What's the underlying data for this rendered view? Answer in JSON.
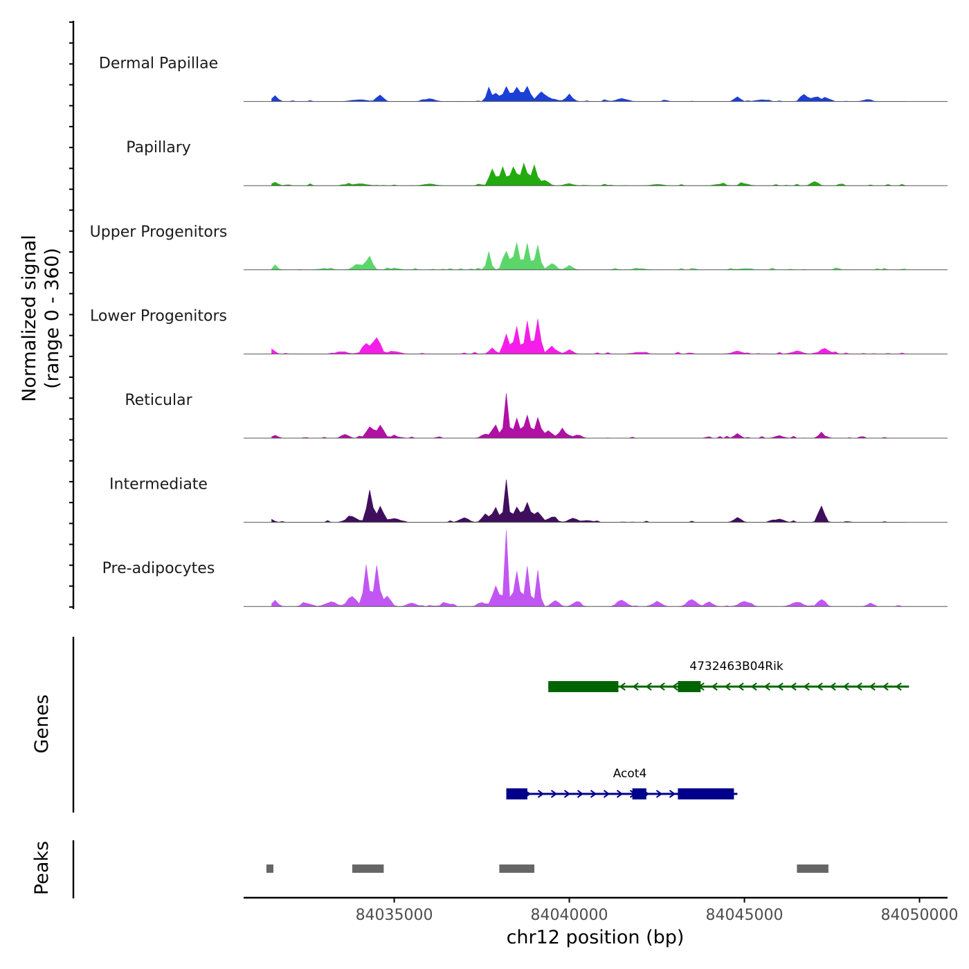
{
  "chart_data": {
    "type": "area",
    "chromosome": "chr12",
    "xlabel": "chr12 position (bp)",
    "xlim": [
      84030700,
      84050800
    ],
    "x_ticks": [
      84035000,
      84040000,
      84045000,
      84050000
    ],
    "x_tick_labels": [
      "84035000",
      "84040000",
      "84045000",
      "84050000"
    ],
    "ylabel_line1": "Normalized signal",
    "ylabel_line2": "(range 0 - 360)",
    "ylim": [
      0,
      360
    ],
    "bin_size": 100,
    "tracks": [
      {
        "name": "Dermal Papillae",
        "color": "#1c3fd6",
        "peaks": [
          [
            84031600,
            12,
            80
          ],
          [
            84034000,
            4,
            200
          ],
          [
            84034600,
            14,
            90
          ],
          [
            84036000,
            6,
            150
          ],
          [
            84037700,
            35,
            60
          ],
          [
            84037900,
            18,
            70
          ],
          [
            84038200,
            30,
            90
          ],
          [
            84038500,
            35,
            90
          ],
          [
            84038800,
            32,
            80
          ],
          [
            84039200,
            18,
            120
          ],
          [
            84039500,
            5,
            150
          ],
          [
            84040000,
            12,
            100
          ],
          [
            84041500,
            6,
            150
          ],
          [
            84044800,
            10,
            80
          ],
          [
            84045500,
            4,
            150
          ],
          [
            84046700,
            15,
            90
          ],
          [
            84047000,
            10,
            80
          ],
          [
            84047300,
            8,
            90
          ],
          [
            84048500,
            4,
            120
          ]
        ]
      },
      {
        "name": "Papillary",
        "color": "#22aa0f",
        "peaks": [
          [
            84031600,
            8,
            80
          ],
          [
            84034000,
            4,
            200
          ],
          [
            84036000,
            4,
            150
          ],
          [
            84037800,
            40,
            80
          ],
          [
            84038100,
            42,
            80
          ],
          [
            84038400,
            46,
            80
          ],
          [
            84038700,
            46,
            80
          ],
          [
            84039000,
            42,
            80
          ],
          [
            84039300,
            12,
            100
          ],
          [
            84040000,
            4,
            120
          ],
          [
            84042500,
            3,
            150
          ],
          [
            84044300,
            3,
            150
          ],
          [
            84045000,
            4,
            120
          ],
          [
            84047000,
            10,
            90
          ]
        ]
      },
      {
        "name": "Upper Progenitors",
        "color": "#5cd66b",
        "peaks": [
          [
            84031600,
            6,
            80
          ],
          [
            84033000,
            3,
            150
          ],
          [
            84034000,
            12,
            150
          ],
          [
            84034300,
            25,
            80
          ],
          [
            84035000,
            3,
            150
          ],
          [
            84037700,
            35,
            60
          ],
          [
            84038200,
            35,
            90
          ],
          [
            84038500,
            60,
            70
          ],
          [
            84038800,
            58,
            70
          ],
          [
            84039100,
            50,
            70
          ],
          [
            84039500,
            14,
            100
          ],
          [
            84040000,
            8,
            100
          ],
          [
            84042000,
            3,
            150
          ],
          [
            84045000,
            3,
            150
          ]
        ]
      },
      {
        "name": "Lower Progenitors",
        "color": "#f51ee9",
        "peaks": [
          [
            84031500,
            10,
            80
          ],
          [
            84033500,
            5,
            150
          ],
          [
            84034200,
            25,
            100
          ],
          [
            84034500,
            32,
            100
          ],
          [
            84035000,
            6,
            150
          ],
          [
            84037800,
            12,
            80
          ],
          [
            84038200,
            40,
            80
          ],
          [
            84038500,
            60,
            70
          ],
          [
            84038800,
            70,
            70
          ],
          [
            84039100,
            75,
            70
          ],
          [
            84039500,
            18,
            100
          ],
          [
            84040000,
            8,
            100
          ],
          [
            84042000,
            4,
            150
          ],
          [
            84044800,
            5,
            150
          ],
          [
            84046500,
            6,
            150
          ],
          [
            84047300,
            8,
            150
          ]
        ]
      },
      {
        "name": "Reticular",
        "color": "#b010a4",
        "peaks": [
          [
            84031600,
            6,
            80
          ],
          [
            84033600,
            8,
            100
          ],
          [
            84034300,
            25,
            100
          ],
          [
            84034600,
            28,
            90
          ],
          [
            84035000,
            4,
            150
          ],
          [
            84037600,
            10,
            100
          ],
          [
            84037900,
            25,
            80
          ],
          [
            84038200,
            95,
            60
          ],
          [
            84038500,
            45,
            80
          ],
          [
            84038800,
            48,
            80
          ],
          [
            84039100,
            40,
            80
          ],
          [
            84039400,
            15,
            100
          ],
          [
            84039800,
            20,
            100
          ],
          [
            84040200,
            6,
            100
          ],
          [
            84044800,
            10,
            80
          ],
          [
            84046000,
            5,
            120
          ],
          [
            84047200,
            12,
            80
          ]
        ]
      },
      {
        "name": "Intermediate",
        "color": "#3f0f5c",
        "peaks": [
          [
            84031500,
            6,
            80
          ],
          [
            84033800,
            12,
            150
          ],
          [
            84034300,
            62,
            80
          ],
          [
            84034600,
            30,
            90
          ],
          [
            84035000,
            8,
            150
          ],
          [
            84037000,
            10,
            120
          ],
          [
            84037600,
            18,
            80
          ],
          [
            84037900,
            30,
            80
          ],
          [
            84038200,
            88,
            60
          ],
          [
            84038500,
            35,
            90
          ],
          [
            84038800,
            38,
            90
          ],
          [
            84039100,
            20,
            100
          ],
          [
            84039500,
            10,
            120
          ],
          [
            84040100,
            8,
            120
          ],
          [
            84040500,
            4,
            150
          ],
          [
            84044800,
            10,
            100
          ],
          [
            84046000,
            8,
            120
          ],
          [
            84047200,
            38,
            80
          ]
        ]
      },
      {
        "name": "Pre-adipocytes",
        "color": "#c256f2",
        "peaks": [
          [
            84031600,
            12,
            80
          ],
          [
            84032500,
            8,
            120
          ],
          [
            84033200,
            10,
            150
          ],
          [
            84033800,
            22,
            120
          ],
          [
            84034200,
            80,
            70
          ],
          [
            84034500,
            85,
            70
          ],
          [
            84034800,
            20,
            100
          ],
          [
            84035500,
            8,
            120
          ],
          [
            84036500,
            8,
            120
          ],
          [
            84037500,
            10,
            100
          ],
          [
            84037900,
            40,
            100
          ],
          [
            84038200,
            150,
            50
          ],
          [
            84038500,
            75,
            70
          ],
          [
            84038800,
            90,
            60
          ],
          [
            84039100,
            70,
            60
          ],
          [
            84039600,
            12,
            100
          ],
          [
            84040200,
            10,
            100
          ],
          [
            84041500,
            15,
            120
          ],
          [
            84042500,
            10,
            120
          ],
          [
            84043500,
            15,
            120
          ],
          [
            84044000,
            10,
            100
          ],
          [
            84045000,
            10,
            150
          ],
          [
            84046500,
            10,
            150
          ],
          [
            84047200,
            15,
            100
          ],
          [
            84048600,
            8,
            80
          ]
        ]
      }
    ],
    "genes": [
      {
        "name": "4732463B04Rik",
        "strand": "-",
        "color": "#006400",
        "start": 84039400,
        "end": 84049700,
        "exons": [
          [
            84039400,
            84041400
          ],
          [
            84043100,
            84043750
          ]
        ]
      },
      {
        "name": "Acot4",
        "strand": "+",
        "color": "#00008b",
        "start": 84038200,
        "end": 84044800,
        "exons": [
          [
            84038200,
            84038800
          ],
          [
            84041800,
            84042200
          ],
          [
            84043100,
            84044700
          ]
        ]
      }
    ],
    "peaks_track": [
      [
        84031350,
        84031550
      ],
      [
        84033800,
        84034700
      ],
      [
        84038000,
        84039000
      ],
      [
        84046500,
        84047400
      ]
    ]
  },
  "panel_labels": {
    "genes": "Genes",
    "peaks": "Peaks"
  }
}
